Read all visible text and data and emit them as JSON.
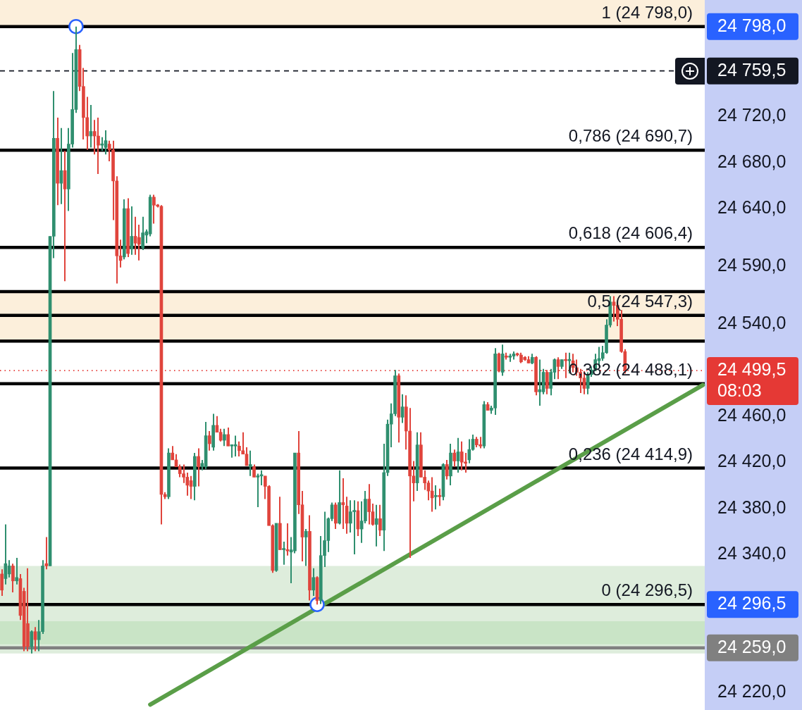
{
  "chart_data": {
    "type": "candlestick",
    "categories": [
      null,
      null,
      null,
      null,
      null,
      null,
      null,
      null,
      null,
      null,
      null,
      null,
      null,
      null,
      null,
      null,
      null,
      null,
      null,
      null,
      null,
      null,
      null,
      null,
      null,
      null,
      null,
      null,
      null,
      null,
      null,
      null,
      null,
      null,
      null,
      null,
      null,
      null,
      null,
      null,
      null,
      null,
      null,
      null,
      null,
      null,
      null,
      null,
      null,
      null,
      null,
      null,
      null,
      null,
      null,
      null,
      null,
      null,
      null,
      null,
      null,
      null,
      null,
      null,
      null,
      null,
      null,
      null,
      null,
      null,
      null,
      null,
      null,
      null,
      null,
      null,
      null,
      null,
      null,
      null,
      null,
      null,
      null,
      null,
      null,
      null,
      null,
      null,
      null,
      null,
      null,
      null,
      null,
      null,
      null,
      null,
      null,
      null,
      null,
      null,
      null,
      null,
      null,
      null,
      null,
      null,
      null,
      null,
      null,
      null,
      null,
      null,
      null,
      null,
      null,
      null,
      null,
      null,
      null,
      null,
      null,
      null,
      null,
      null,
      null,
      null,
      null,
      null,
      null,
      null,
      null,
      null,
      null,
      null,
      null,
      null,
      null,
      null,
      null,
      null,
      null,
      null,
      null,
      null,
      null,
      null,
      null,
      null,
      null,
      null,
      null,
      null,
      null,
      null,
      null,
      null,
      null,
      null,
      null,
      null,
      null,
      null,
      null,
      null,
      null,
      null,
      null,
      null,
      null,
      null,
      null,
      null,
      null,
      null,
      null,
      null,
      null,
      null,
      null,
      null,
      null,
      null,
      null,
      null,
      null,
      null,
      null,
      null,
      null,
      null
    ],
    "ohlc": [
      [
        24323,
        24327,
        24304,
        24309
      ],
      [
        24319,
        24366,
        24314,
        24332
      ],
      [
        24323,
        24335,
        24320,
        24330
      ],
      [
        24330,
        24332,
        24307,
        24317
      ],
      [
        24317,
        24337,
        24314,
        24320
      ],
      [
        24319,
        24323,
        24283,
        24287
      ],
      [
        24308,
        24311,
        24256,
        24260
      ],
      [
        24280,
        24328,
        24256,
        24260
      ],
      [
        24260,
        24274,
        24254,
        24273
      ],
      [
        24273,
        24277,
        24256,
        24266
      ],
      [
        24266,
        24283,
        24256,
        24273
      ],
      [
        24273,
        24335,
        24271,
        24330
      ],
      [
        24332,
        24355,
        24327,
        24330
      ],
      [
        24330,
        24616,
        24330,
        24616
      ],
      [
        24616,
        24742,
        24597,
        24701
      ],
      [
        24701,
        24719,
        24643,
        24662
      ],
      [
        24662,
        24710,
        24644,
        24673
      ],
      [
        24673,
        24690,
        24577,
        24657
      ],
      [
        24657,
        24710,
        24638,
        24696
      ],
      [
        24696,
        24775,
        24693,
        24726
      ],
      [
        24726,
        24798,
        24723,
        24778
      ],
      [
        24778,
        24782,
        24742,
        24746
      ],
      [
        24746,
        24762,
        24700,
        24719
      ],
      [
        24719,
        24737,
        24691,
        24703
      ],
      [
        24703,
        24730,
        24693,
        24707
      ],
      [
        24707,
        24717,
        24687,
        24703
      ],
      [
        24703,
        24719,
        24670,
        24695
      ],
      [
        24695,
        24702,
        24690,
        24696
      ],
      [
        24693,
        24708,
        24687,
        24699
      ],
      [
        24696,
        24699,
        24681,
        24691
      ],
      [
        24691,
        24699,
        24630,
        24664
      ],
      [
        24664,
        24668,
        24575,
        24599
      ],
      [
        24599,
        24613,
        24589,
        24595
      ],
      [
        24598,
        24648,
        24596,
        24640
      ],
      [
        24640,
        24649,
        24598,
        24601
      ],
      [
        24605,
        24642,
        24600,
        24616
      ],
      [
        24616,
        24633,
        24600,
        24610
      ],
      [
        24615,
        24626,
        24595,
        24609
      ],
      [
        24606,
        24633,
        24604,
        24619
      ],
      [
        24617,
        24622,
        24610,
        24620
      ],
      [
        24618,
        24652,
        24616,
        24650
      ],
      [
        24650,
        24652,
        24627,
        24643
      ],
      [
        24643,
        24644,
        24641,
        24642
      ],
      [
        24642,
        24643,
        24366,
        24392
      ],
      [
        24392,
        24394,
        24388,
        24390
      ],
      [
        24390,
        24432,
        24388,
        24428
      ],
      [
        24428,
        24434,
        24422,
        24422
      ],
      [
        24422,
        24427,
        24416,
        24416
      ],
      [
        24416,
        24418,
        24407,
        24410
      ],
      [
        24410,
        24418,
        24402,
        24407
      ],
      [
        24407,
        24411,
        24391,
        24400
      ],
      [
        24404,
        24408,
        24388,
        24399
      ],
      [
        24399,
        24428,
        24387,
        24425
      ],
      [
        24425,
        24432,
        24399,
        24416
      ],
      [
        24416,
        24422,
        24413,
        24419
      ],
      [
        24416,
        24455,
        24414,
        24443
      ],
      [
        24443,
        24447,
        24430,
        24436
      ],
      [
        24433,
        24462,
        24430,
        24452
      ],
      [
        24452,
        24460,
        24446,
        24446
      ],
      [
        24446,
        24449,
        24438,
        24439
      ],
      [
        24439,
        24449,
        24434,
        24444
      ],
      [
        24444,
        24450,
        24434,
        24434
      ],
      [
        24434,
        24435,
        24424,
        24435
      ],
      [
        24434,
        24443,
        24425,
        24435
      ],
      [
        24434,
        24438,
        24425,
        24430
      ],
      [
        24430,
        24446,
        24427,
        24427
      ],
      [
        24427,
        24433,
        24417,
        24417
      ],
      [
        24416,
        24430,
        24408,
        24418
      ],
      [
        24416,
        24418,
        24407,
        24407
      ],
      [
        24407,
        24410,
        24381,
        24408
      ],
      [
        24408,
        24413,
        24400,
        24409
      ],
      [
        24408,
        24408,
        24388,
        24399
      ],
      [
        24399,
        24400,
        24365,
        24365
      ],
      [
        24365,
        24366,
        24324,
        24326
      ],
      [
        24326,
        24367,
        24325,
        24367
      ],
      [
        24367,
        24390,
        24344,
        24344
      ],
      [
        24344,
        24351,
        24331,
        24345
      ],
      [
        24344,
        24367,
        24339,
        24343
      ],
      [
        24342,
        24355,
        24315,
        24344
      ],
      [
        24343,
        24428,
        24341,
        24428
      ],
      [
        24428,
        24447,
        24375,
        24383
      ],
      [
        24383,
        24395,
        24334,
        24355
      ],
      [
        24355,
        24362,
        24330,
        24360
      ],
      [
        24360,
        24374,
        24300,
        24309
      ],
      [
        24309,
        24328,
        24304,
        24320
      ],
      [
        24320,
        24321,
        24296.5,
        24300
      ],
      [
        24300,
        24356,
        24297,
        24339
      ],
      [
        24339,
        24377,
        24329,
        24352
      ],
      [
        24352,
        24372,
        24342,
        24371
      ],
      [
        24371,
        24385,
        24369,
        24383
      ],
      [
        24383,
        24385,
        24362,
        24367
      ],
      [
        24367,
        24413,
        24366,
        24385
      ],
      [
        24385,
        24406,
        24362,
        24383
      ],
      [
        24382,
        24390,
        24358,
        24367
      ],
      [
        24367,
        24387,
        24359,
        24377
      ],
      [
        24377,
        24387,
        24340,
        24378
      ],
      [
        24378,
        24386,
        24356,
        24362
      ],
      [
        24362,
        24386,
        24350,
        24369
      ],
      [
        24369,
        24395,
        24367,
        24388
      ],
      [
        24388,
        24401,
        24366,
        24377
      ],
      [
        24377,
        24384,
        24365,
        24366
      ],
      [
        24366,
        24383,
        24347,
        24371
      ],
      [
        24371,
        24383,
        24356,
        24361
      ],
      [
        24361,
        24436,
        24343,
        24411
      ],
      [
        24411,
        24457,
        24408,
        24453
      ],
      [
        24453,
        24471,
        24433,
        24462
      ],
      [
        24462,
        24500,
        24460,
        24495
      ],
      [
        24495,
        24497,
        24437,
        24459
      ],
      [
        24459,
        24479,
        24454,
        24468
      ],
      [
        24468,
        24478,
        24431,
        24447
      ],
      [
        24447,
        24467,
        24337,
        24408
      ],
      [
        24408,
        24421,
        24386,
        24402
      ],
      [
        24402,
        24446,
        24395,
        24435
      ],
      [
        24435,
        24446,
        24407,
        24407
      ],
      [
        24407,
        24413,
        24396,
        24402
      ],
      [
        24402,
        24404,
        24387,
        24395
      ],
      [
        24395,
        24407,
        24377,
        24389
      ],
      [
        24390,
        24400,
        24379,
        24391
      ],
      [
        24391,
        24397,
        24382,
        24390
      ],
      [
        24390,
        24419,
        24387,
        24418
      ],
      [
        24418,
        24422,
        24405,
        24408
      ],
      [
        24408,
        24436,
        24400,
        24428
      ],
      [
        24428,
        24431,
        24416,
        24421
      ],
      [
        24421,
        24441,
        24411,
        24429
      ],
      [
        24429,
        24438,
        24413,
        24420
      ],
      [
        24420,
        24428,
        24411,
        24419
      ],
      [
        24422,
        24440,
        24419,
        24431
      ],
      [
        24431,
        24444,
        24430,
        24440
      ],
      [
        24440,
        24442,
        24433,
        24435
      ],
      [
        24435,
        24442,
        24432,
        24434
      ],
      [
        24434,
        24473,
        24432,
        24470
      ],
      [
        24470,
        24472,
        24465,
        24465
      ],
      [
        24465,
        24469,
        24462,
        24467
      ],
      [
        24467,
        24519,
        24461,
        24514
      ],
      [
        24514,
        24515,
        24498,
        24499
      ],
      [
        24498,
        24522,
        24495,
        24514
      ],
      [
        24512,
        24515,
        24509,
        24511
      ],
      [
        24511,
        24514,
        24507,
        24512
      ],
      [
        24512,
        24516,
        24509,
        24514
      ],
      [
        24514,
        24515,
        24512,
        24513
      ],
      [
        24513,
        24515,
        24506,
        24507
      ],
      [
        24511,
        24512,
        24508,
        24509
      ],
      [
        24509,
        24512,
        24506,
        24506
      ],
      [
        24506,
        24514,
        24505,
        24511
      ],
      [
        24511,
        24512,
        24478,
        24481
      ],
      [
        24481,
        24509,
        24469,
        24483
      ],
      [
        24481,
        24501,
        24479,
        24498
      ],
      [
        24498,
        24500,
        24479,
        24484
      ],
      [
        24484,
        24501,
        24478,
        24498
      ],
      [
        24498,
        24510,
        24492,
        24509
      ],
      [
        24509,
        24511,
        24492,
        24503
      ],
      [
        24503,
        24509,
        24501,
        24509
      ],
      [
        24509,
        24515,
        24493,
        24508
      ],
      [
        24508,
        24515,
        24497,
        24509
      ],
      [
        24508,
        24514,
        24498,
        24502
      ],
      [
        24502,
        24509,
        24495,
        24498
      ],
      [
        24498,
        24501,
        24480,
        24493
      ],
      [
        24493,
        24499,
        24479,
        24484
      ],
      [
        24484,
        24498,
        24479,
        24496
      ],
      [
        24496,
        24503,
        24494,
        24500
      ],
      [
        24500,
        24514,
        24499,
        24509
      ],
      [
        24508,
        24520,
        24503,
        24510
      ],
      [
        24510,
        24521,
        24508,
        24515
      ],
      [
        24515,
        24544,
        24514,
        24539
      ],
      [
        24539,
        24564,
        24537,
        24559
      ],
      [
        24559,
        24564,
        24542,
        24556
      ],
      [
        24556,
        24558,
        24538,
        24544
      ],
      [
        24544,
        24552,
        24515,
        24516
      ],
      [
        24516,
        24518,
        24497,
        24499.5
      ],
      null,
      null,
      null,
      null,
      null,
      null,
      null,
      null,
      null,
      null,
      null,
      null,
      null,
      null,
      null,
      null,
      null,
      null,
      null,
      null,
      null
    ],
    "colors": [
      "#e0443c",
      "#2f8f6f",
      "#2f8f6f",
      "#e0443c",
      "#2f8f6f",
      "#e0443c",
      "#e0443c",
      "#e0443c",
      "#2f8f6f",
      "#e0443c",
      "#2f8f6f",
      "#2f8f6f",
      "#e0443c",
      "#2f8f6f",
      "#2f8f6f",
      "#e0443c",
      "#2f8f6f",
      "#e0443c",
      "#2f8f6f",
      "#2f8f6f",
      "#2f8f6f",
      "#e0443c",
      "#e0443c",
      "#e0443c",
      "#2f8f6f",
      "#e0443c",
      "#e0443c",
      "#2f8f6f",
      "#2f8f6f",
      "#e0443c",
      "#e0443c",
      "#e0443c",
      "#e0443c",
      "#2f8f6f",
      "#e0443c",
      "#2f8f6f",
      "#e0443c",
      "#e0443c",
      "#2f8f6f",
      "#2f8f6f",
      "#2f8f6f",
      "#e0443c",
      "#e0443c",
      "#e0443c",
      "#e0443c",
      "#2f8f6f",
      "#e0443c",
      "#e0443c",
      "#e0443c",
      "#e0443c",
      "#e0443c",
      "#e0443c",
      "#2f8f6f",
      "#e0443c",
      "#2f8f6f",
      "#2f8f6f",
      "#e0443c",
      "#2f8f6f",
      "#e0443c",
      "#e0443c",
      "#2f8f6f",
      "#e0443c",
      "#2f8f6f",
      "#2f8f6f",
      "#e0443c",
      "#e0443c",
      "#e0443c",
      "#2f8f6f",
      "#e0443c",
      "#2f8f6f",
      "#2f8f6f",
      "#e0443c",
      "#e0443c",
      "#e0443c",
      "#2f8f6f",
      "#e0443c",
      "#2f8f6f",
      "#e0443c",
      "#2f8f6f",
      "#2f8f6f",
      "#e0443c",
      "#e0443c",
      "#2f8f6f",
      "#e0443c",
      "#2f8f6f",
      "#e0443c",
      "#2f8f6f",
      "#2f8f6f",
      "#2f8f6f",
      "#2f8f6f",
      "#e0443c",
      "#2f8f6f",
      "#e0443c",
      "#e0443c",
      "#2f8f6f",
      "#2f8f6f",
      "#e0443c",
      "#2f8f6f",
      "#2f8f6f",
      "#e0443c",
      "#e0443c",
      "#2f8f6f",
      "#e0443c",
      "#2f8f6f",
      "#2f8f6f",
      "#2f8f6f",
      "#2f8f6f",
      "#e0443c",
      "#2f8f6f",
      "#e0443c",
      "#e0443c",
      "#e0443c",
      "#2f8f6f",
      "#e0443c",
      "#e0443c",
      "#e0443c",
      "#e0443c",
      "#2f8f6f",
      "#e0443c",
      "#2f8f6f",
      "#e0443c",
      "#2f8f6f",
      "#e0443c",
      "#2f8f6f",
      "#e0443c",
      "#e0443c",
      "#2f8f6f",
      "#2f8f6f",
      "#e0443c",
      "#e0443c",
      "#2f8f6f",
      "#e0443c",
      "#2f8f6f",
      "#2f8f6f",
      "#e0443c",
      "#2f8f6f",
      "#e0443c",
      "#2f8f6f",
      "#2f8f6f",
      "#e0443c",
      "#e0443c",
      "#e0443c",
      "#e0443c",
      "#2f8f6f",
      "#e0443c",
      "#2f8f6f",
      "#2f8f6f",
      "#e0443c",
      "#2f8f6f",
      "#2f8f6f",
      "#e0443c",
      "#2f8f6f",
      "#e0443c",
      "#2f8f6f",
      "#e0443c",
      "#e0443c",
      "#e0443c",
      "#e0443c",
      "#2f8f6f",
      "#2f8f6f",
      "#2f8f6f",
      "#2f8f6f",
      "#2f8f6f",
      "#2f8f6f",
      "#2f8f6f",
      "#e0443c",
      "#e0443c",
      "#e0443c",
      "#e0443c",
      null,
      null,
      null,
      null,
      null,
      null,
      null,
      null,
      null,
      null,
      null,
      null,
      null,
      null,
      null,
      null,
      null,
      null,
      null,
      null,
      null
    ],
    "series": [
      {
        "type": "line",
        "color": "#5a9e48",
        "values": [
          null,
          null,
          null,
          null,
          null,
          null,
          null,
          null,
          null,
          null,
          null,
          null,
          null,
          null,
          null,
          null,
          null,
          null,
          null,
          null,
          null,
          null,
          null,
          null,
          null,
          null,
          null,
          null,
          null,
          null,
          null,
          null,
          null,
          null,
          null,
          null,
          null,
          null,
          null,
          null,
          24209.7,
          null,
          null,
          null,
          null,
          null,
          null,
          null,
          null,
          null,
          null,
          null,
          null,
          null,
          null,
          null,
          null,
          null,
          null,
          null,
          null,
          null,
          null,
          null,
          null,
          null,
          null,
          null,
          null,
          null,
          null,
          null,
          null,
          null,
          null,
          null,
          null,
          null,
          null,
          null,
          null,
          null,
          null,
          null,
          null,
          null,
          null,
          null,
          null,
          null,
          null,
          null,
          null,
          null,
          null,
          null,
          null,
          null,
          null,
          null,
          null,
          null,
          null,
          null,
          null,
          null,
          null,
          null,
          null,
          null,
          null,
          null,
          null,
          null,
          null,
          null,
          null,
          null,
          null,
          null,
          null,
          null,
          null,
          null,
          null,
          null,
          null,
          null,
          null,
          null,
          null,
          null,
          null,
          null,
          null,
          null,
          null,
          null,
          null,
          null,
          null,
          null,
          null,
          null,
          null,
          null,
          null,
          null,
          null,
          null,
          null,
          null,
          null,
          null,
          null,
          null,
          null,
          null,
          null,
          null,
          null,
          null,
          null,
          null,
          null,
          null,
          null,
          null,
          null,
          null,
          null,
          null,
          null,
          null,
          null,
          null,
          null,
          null,
          null,
          null,
          null,
          null,
          null,
          null,
          null,
          null,
          null,
          null,
          null,
          24487
        ]
      },
      {
        "type": "scatter",
        "color": "#2962ff",
        "marker": "circle",
        "values": [
          null,
          null,
          null,
          null,
          null,
          null,
          null,
          null,
          null,
          null,
          null,
          null,
          null,
          null,
          null,
          null,
          null,
          null,
          null,
          null,
          24798,
          null,
          null,
          null,
          null,
          null,
          null,
          null,
          null,
          null,
          null,
          null,
          null,
          null,
          null,
          null,
          null,
          null,
          null,
          null,
          null,
          null,
          null,
          null,
          null,
          null,
          null,
          null,
          null,
          null,
          null,
          null,
          null,
          null,
          null,
          null,
          null,
          null,
          null,
          null,
          null,
          null,
          null,
          null,
          null,
          null,
          null,
          null,
          null,
          null,
          null,
          null,
          null,
          null,
          null,
          null,
          null,
          null,
          null,
          null,
          null,
          null,
          null,
          null,
          null,
          24296.5,
          null,
          null,
          null,
          null,
          null,
          null,
          null,
          null,
          null,
          null,
          null,
          null,
          null,
          null,
          null,
          null,
          null,
          null,
          null,
          null,
          null,
          null,
          null,
          null,
          null,
          null,
          null,
          null,
          null,
          null,
          null,
          null,
          null,
          null,
          null,
          null,
          null,
          null,
          null,
          null,
          null,
          null,
          null,
          null,
          null,
          null,
          null,
          null,
          null,
          null,
          null,
          null,
          null,
          null,
          null,
          null,
          null,
          null,
          null,
          null,
          null,
          null,
          null,
          null,
          null,
          null,
          null,
          null,
          null,
          null,
          null,
          null,
          null,
          null,
          null,
          null,
          null,
          null,
          null,
          null,
          null,
          null,
          null,
          null,
          null,
          null,
          null,
          null,
          null,
          null,
          null,
          null,
          null,
          null,
          null,
          null,
          null,
          null,
          null,
          null,
          null,
          null,
          null,
          null
        ]
      }
    ],
    "ylim": [
      24205,
      24821
    ],
    "yticks": [
      {
        "value": 24798,
        "label": "24 798,0"
      },
      {
        "value": 24759.5,
        "label": "24 759,5"
      },
      {
        "value": 24720,
        "label": "24 720,0"
      },
      {
        "value": 24680,
        "label": "24 680,0"
      },
      {
        "value": 24640,
        "label": "24 640,0"
      },
      {
        "value": 24590,
        "label": "24 590,0"
      },
      {
        "value": 24540,
        "label": "24 540,0"
      },
      {
        "value": 24499.5,
        "label": "24 499,5"
      },
      {
        "value": 24460,
        "label": "24 460,0"
      },
      {
        "value": 24420,
        "label": "24 420,0"
      },
      {
        "value": 24380,
        "label": "24 380,0"
      },
      {
        "value": 24340,
        "label": "24 340,0"
      },
      {
        "value": 24296.5,
        "label": "24 296,5"
      },
      {
        "value": 24259,
        "label": "24 259,0"
      },
      {
        "value": 24220,
        "label": "24 220,0"
      }
    ],
    "bands": [
      {
        "axis": "y",
        "from": 24798,
        "to": 24821,
        "color": "#fcefdb"
      },
      {
        "axis": "y",
        "from": 24525,
        "to": 24568,
        "color": "#fcefdb"
      },
      {
        "axis": "y",
        "from": 24254,
        "to": 24330,
        "color": "#deeddc"
      },
      {
        "axis": "y",
        "from": 24262,
        "to": 24282,
        "color": "#c9e4c6"
      }
    ],
    "ref_lines": [
      {
        "axis": "y",
        "value": 24798,
        "label": "1 (24 798,0)",
        "color": "#000000"
      },
      {
        "axis": "y",
        "value": 24759.5,
        "color": "#131722",
        "line_style": "dashed"
      },
      {
        "axis": "y",
        "value": 24690.7,
        "label": "0,786 (24 690,7)",
        "color": "#000000"
      },
      {
        "axis": "y",
        "value": 24606.4,
        "label": "0,618 (24 606,4)",
        "color": "#000000"
      },
      {
        "axis": "y",
        "value": 24568,
        "color": "#000000"
      },
      {
        "axis": "y",
        "value": 24547.3,
        "label": "0,5 (24 547,3)",
        "color": "#000000"
      },
      {
        "axis": "y",
        "value": 24525,
        "color": "#000000"
      },
      {
        "axis": "y",
        "value": 24499.5,
        "color": "#e53935",
        "line_style": "dotted"
      },
      {
        "axis": "y",
        "value": 24488.1,
        "label": "0,382 (24 488,1)",
        "color": "#000000"
      },
      {
        "axis": "y",
        "value": 24414.9,
        "label": "0,236 (24 414,9)",
        "color": "#000000"
      },
      {
        "axis": "y",
        "value": 24296.5,
        "label": "0 (24 296,5)",
        "color": "#000000"
      },
      {
        "axis": "y",
        "value": 24259,
        "color": "#808080"
      }
    ],
    "annotations": [
      "08:03"
    ],
    "tick_labels": "y"
  }
}
